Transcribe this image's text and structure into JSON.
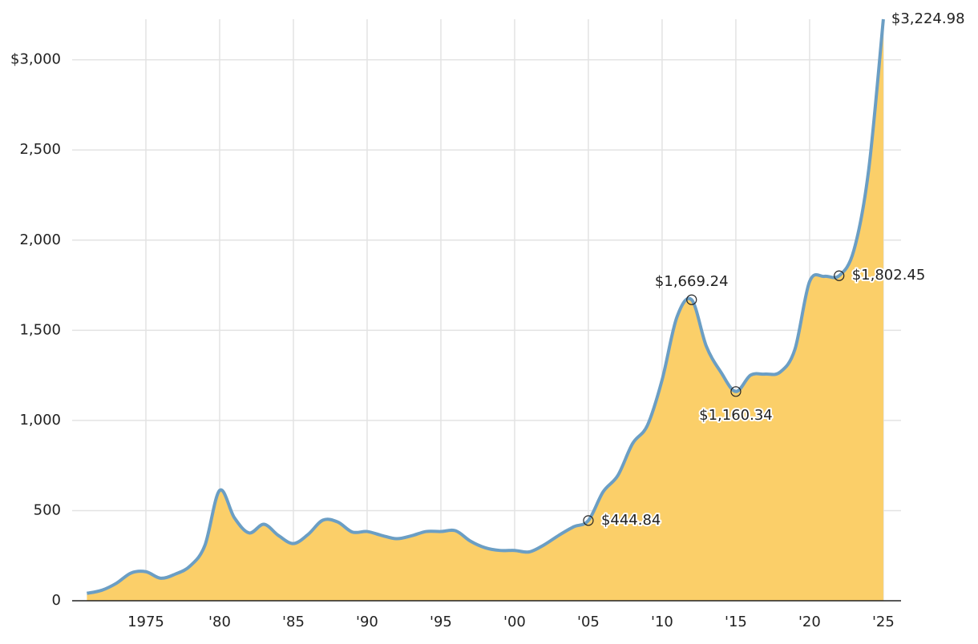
{
  "chart_data": {
    "type": "area",
    "x": [
      1971,
      1972,
      1973,
      1974,
      1975,
      1976,
      1977,
      1978,
      1979,
      1980,
      1981,
      1982,
      1983,
      1984,
      1985,
      1986,
      1987,
      1988,
      1989,
      1990,
      1991,
      1992,
      1993,
      1994,
      1995,
      1996,
      1997,
      1998,
      1999,
      2000,
      2001,
      2002,
      2003,
      2004,
      2005,
      2006,
      2007,
      2008,
      2009,
      2010,
      2011,
      2012,
      2013,
      2014,
      2015,
      2016,
      2017,
      2018,
      2019,
      2020,
      2021,
      2022,
      2023,
      2024,
      2025
    ],
    "series": [
      {
        "color": "#6b9ec4",
        "fill": "#fbcf69",
        "values": [
          41,
          58,
          97,
          154,
          161,
          125,
          148,
          193,
          307,
          612,
          460,
          376,
          424,
          361,
          317,
          368,
          447,
          437,
          381,
          384,
          362,
          344,
          360,
          384,
          384,
          388,
          331,
          294,
          279,
          279,
          271,
          310,
          363,
          410,
          444.84,
          604,
          695,
          872,
          972,
          1225,
          1572,
          1669.24,
          1411,
          1266,
          1160.34,
          1251,
          1257,
          1268,
          1393,
          1770,
          1799,
          1802.45,
          1943,
          2386,
          3224.98
        ],
        "value_labels": [
          null,
          null,
          null,
          null,
          null,
          null,
          null,
          null,
          null,
          null,
          null,
          null,
          null,
          null,
          null,
          null,
          null,
          null,
          null,
          null,
          null,
          null,
          null,
          null,
          null,
          null,
          null,
          null,
          null,
          null,
          null,
          null,
          null,
          null,
          "$444.84",
          null,
          null,
          null,
          null,
          null,
          null,
          "$1,669.24",
          null,
          null,
          "$1,160.34",
          null,
          null,
          null,
          null,
          null,
          null,
          "$1,802.45",
          null,
          null,
          "$3,224.98"
        ]
      }
    ],
    "xlim": [
      1970,
      2026.2
    ],
    "ylim": [
      0,
      3225
    ],
    "xticks": [
      1975,
      {
        "value": 1980,
        "label": "'80"
      },
      {
        "value": 1985,
        "label": "'85"
      },
      {
        "value": 1990,
        "label": "'90"
      },
      {
        "value": 1995,
        "label": "'95"
      },
      {
        "value": 2000,
        "label": "'00"
      },
      {
        "value": 2005,
        "label": "'05"
      },
      {
        "value": 2010,
        "label": "'10"
      },
      {
        "value": 2015,
        "label": "'15"
      },
      {
        "value": 2020,
        "label": "'20"
      },
      {
        "value": 2025,
        "label": "'25"
      }
    ],
    "yticks": [
      0,
      500,
      {
        "value": 1000,
        "label": "1,000"
      },
      {
        "value": 1500,
        "label": "1,500"
      },
      {
        "value": 2000,
        "label": "2,000"
      },
      {
        "value": 2500,
        "label": "2,500"
      },
      {
        "value": 3000,
        "label": "$3,000"
      }
    ],
    "grid": true
  }
}
